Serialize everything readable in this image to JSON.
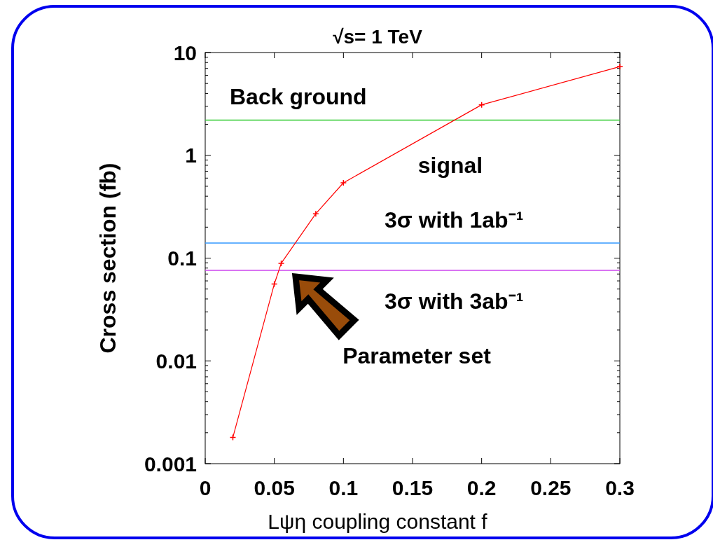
{
  "chart_data": {
    "type": "line",
    "title": "√s= 1 TeV",
    "xlabel": "Lψη coupling constant f",
    "ylabel": "Cross section (fb)",
    "x": [
      0.02,
      0.05,
      0.055,
      0.08,
      0.1,
      0.2,
      0.3
    ],
    "series": [
      {
        "color": "#ff0000",
        "values": [
          0.0018,
          0.056,
          0.089,
          0.27,
          0.54,
          3.1,
          7.3
        ]
      }
    ],
    "xlim": [
      0,
      0.3
    ],
    "xticks": [
      0,
      0.05,
      0.1,
      0.15,
      0.2,
      0.25,
      0.3
    ],
    "ylim": [
      0.001,
      10
    ],
    "yticks": [
      0.001,
      0.01,
      0.1,
      1,
      10
    ],
    "log": true,
    "grid": false,
    "marker": "cross",
    "line_style": "solid",
    "ref_lines": [
      {
        "axis": "y",
        "value": 2.2,
        "label": "Back ground",
        "color": "#33cc33"
      },
      {
        "axis": "y",
        "value": 0.14,
        "label": "3σ with 1ab⁻¹",
        "color": "#3399ff"
      },
      {
        "axis": "y",
        "value": 0.076,
        "label": "3σ with 3ab⁻¹",
        "color": "#cc44ee"
      }
    ],
    "annotations": [
      "signal",
      "Parameter set"
    ]
  }
}
